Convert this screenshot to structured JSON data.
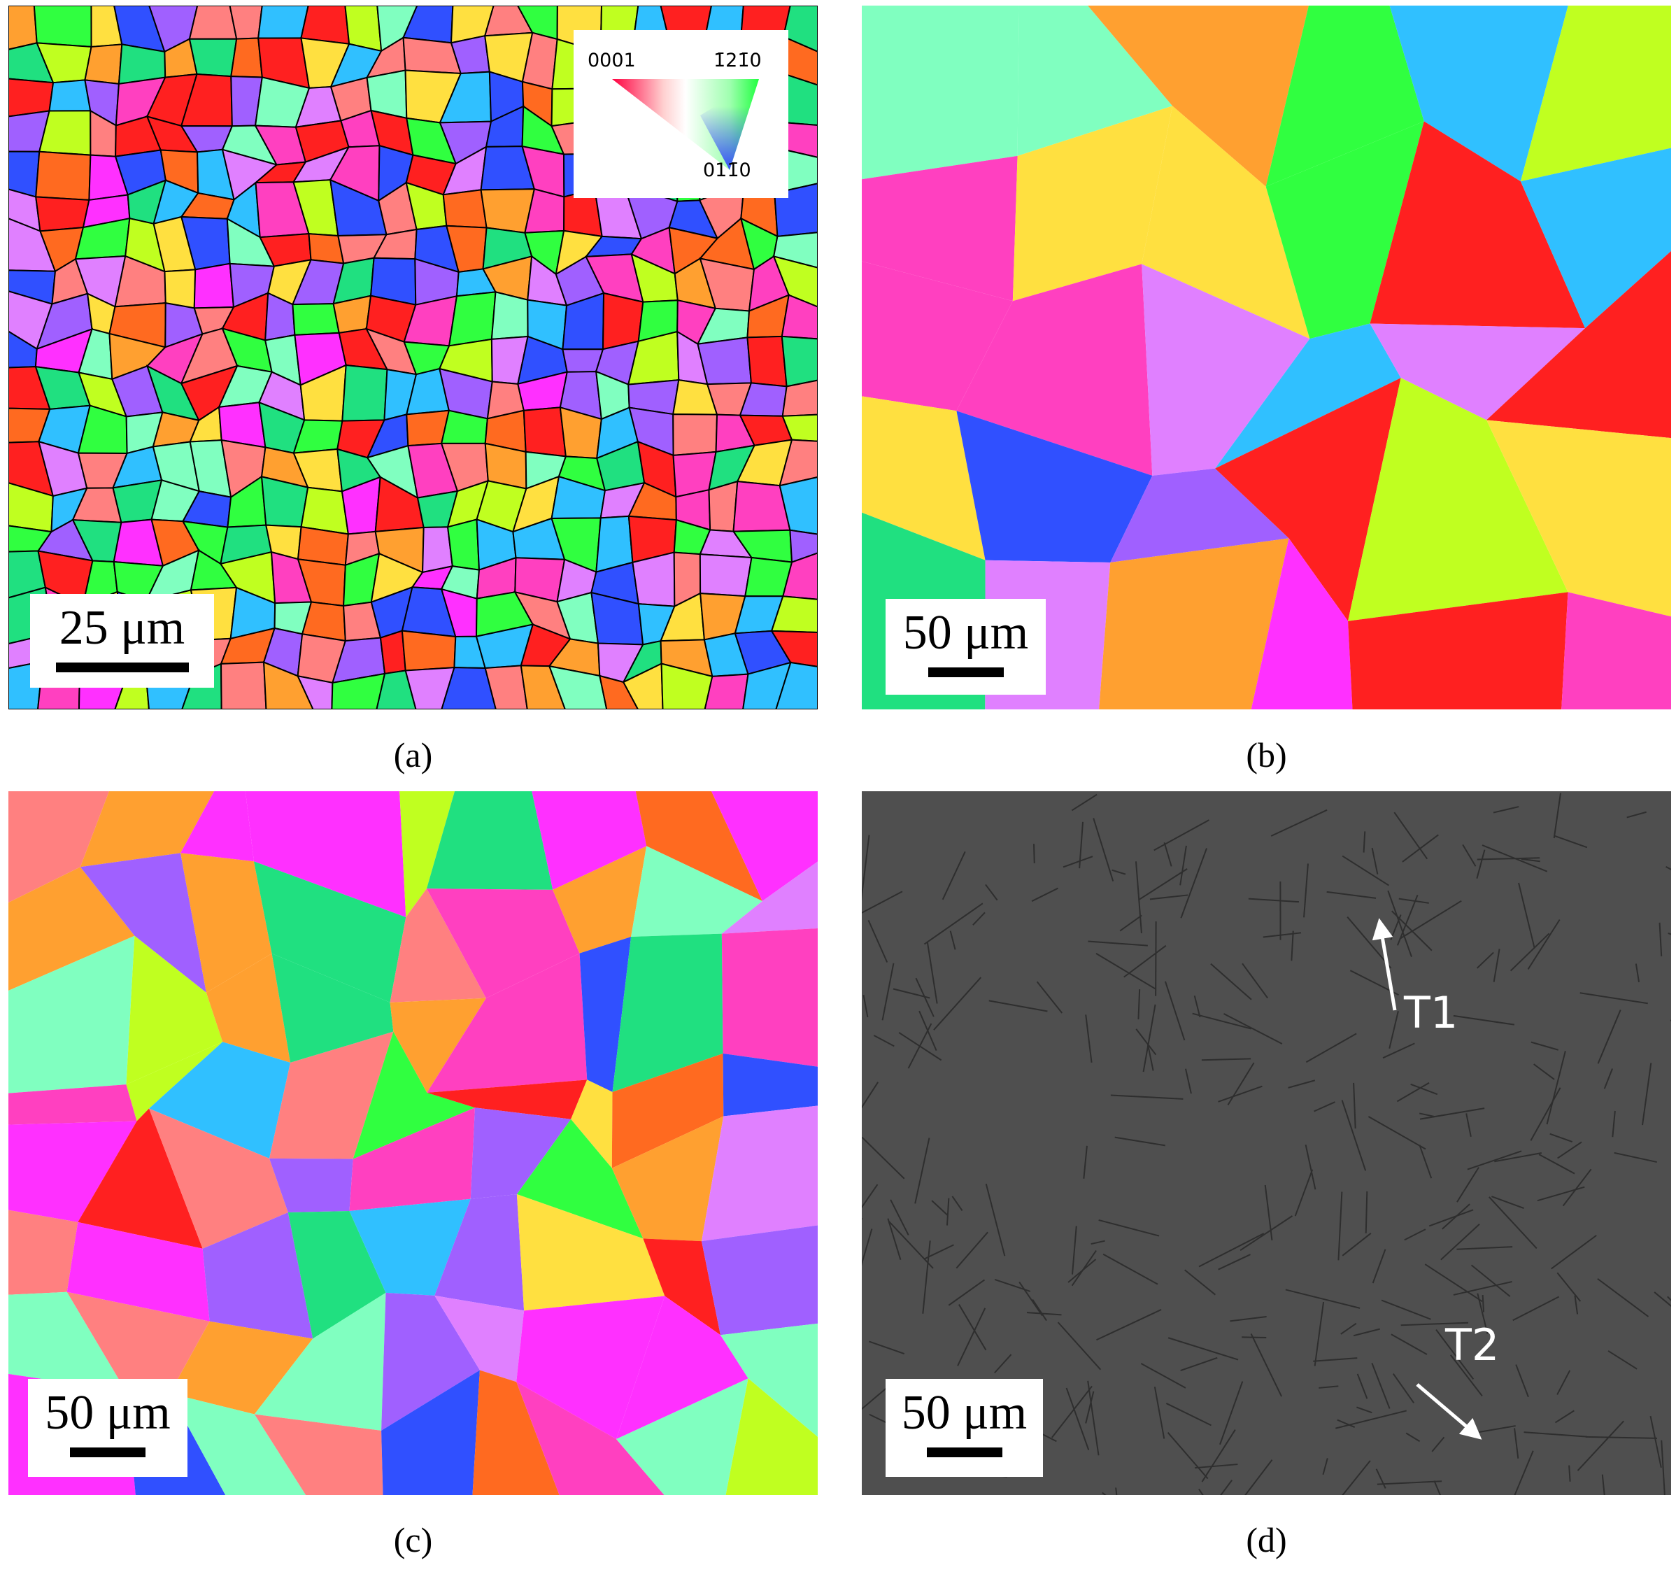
{
  "panels": [
    {
      "label": "(a)",
      "scale_bar": "25 μm",
      "legend": {
        "labels": [
          "0001",
          "1̄21̄0",
          "011̄0"
        ]
      }
    },
    {
      "label": "(b)",
      "scale_bar": "50 μm"
    },
    {
      "label": "(c)",
      "scale_bar": "50 μm"
    },
    {
      "label": "(d)",
      "scale_bar": "50 μm",
      "annotations": [
        "T1",
        "T2"
      ]
    }
  ]
}
